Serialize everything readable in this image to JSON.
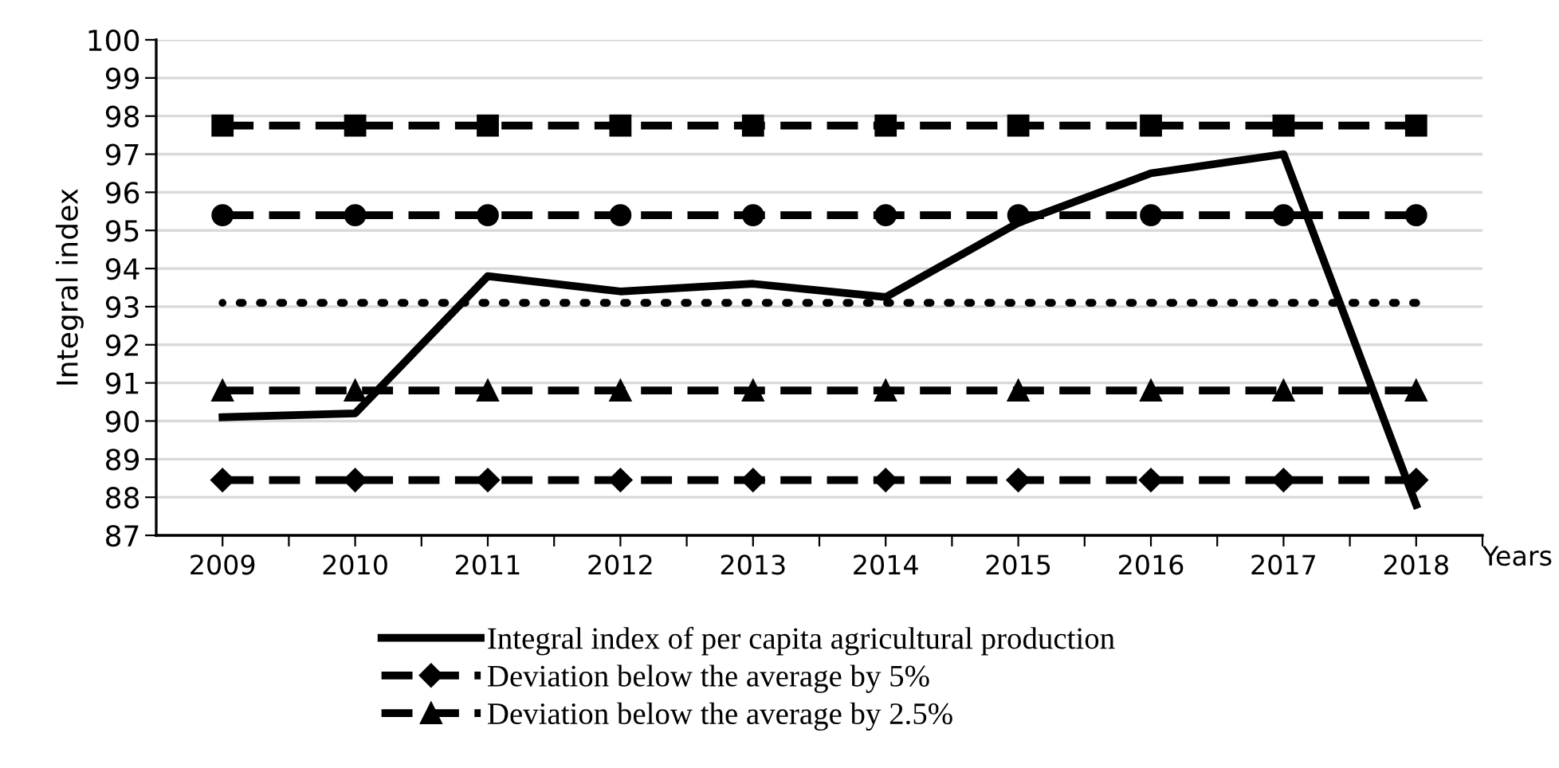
{
  "chart_data": {
    "type": "line",
    "ylabel": "Integral index",
    "xlabel": "Years",
    "categories": [
      "2009",
      "2010",
      "2011",
      "2012",
      "2013",
      "2014",
      "2015",
      "2016",
      "2017",
      "2018"
    ],
    "ylim": [
      87,
      100
    ],
    "yticks": [
      87,
      88,
      89,
      90,
      91,
      92,
      93,
      94,
      95,
      96,
      97,
      98,
      99,
      100
    ],
    "grid": "y",
    "legend": "bottom",
    "series": [
      {
        "name": "Integral index of per capita agricultural production",
        "color": "#000000",
        "line_style": "solid",
        "marker": "none",
        "values": [
          90.1,
          90.2,
          93.8,
          93.4,
          93.6,
          93.25,
          95.2,
          96.5,
          97.0,
          87.8
        ]
      },
      {
        "name": "Deviation below the average by 5%",
        "color": "#000000",
        "line_style": "dashed",
        "marker": "diamond",
        "values": [
          88.45,
          88.45,
          88.45,
          88.45,
          88.45,
          88.45,
          88.45,
          88.45,
          88.45,
          88.45
        ]
      },
      {
        "name": "Deviation below the average by 2.5%",
        "color": "#000000",
        "line_style": "dashed",
        "marker": "triangle",
        "values": [
          90.8,
          90.8,
          90.8,
          90.8,
          90.8,
          90.8,
          90.8,
          90.8,
          90.8,
          90.8
        ]
      },
      {
        "color": "#000000",
        "line_style": "dotted",
        "marker": "none",
        "values": [
          93.1,
          93.1,
          93.1,
          93.1,
          93.1,
          93.1,
          93.1,
          93.1,
          93.1,
          93.1
        ]
      },
      {
        "color": "#000000",
        "line_style": "dashed",
        "marker": "circle",
        "values": [
          95.4,
          95.4,
          95.4,
          95.4,
          95.4,
          95.4,
          95.4,
          95.4,
          95.4,
          95.4
        ]
      },
      {
        "color": "#000000",
        "line_style": "dashed",
        "marker": "square",
        "values": [
          97.75,
          97.75,
          97.75,
          97.75,
          97.75,
          97.75,
          97.75,
          97.75,
          97.75,
          97.75
        ]
      }
    ]
  }
}
